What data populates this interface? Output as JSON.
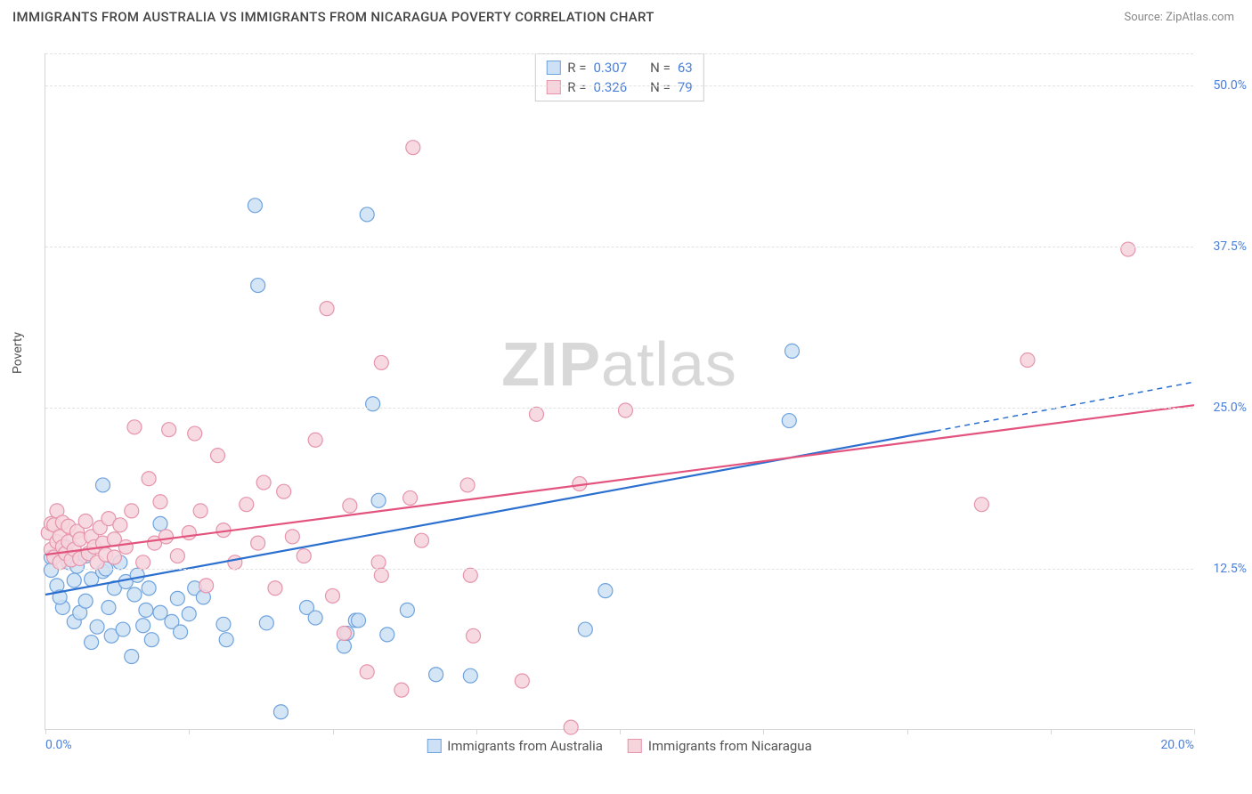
{
  "title": "IMMIGRANTS FROM AUSTRALIA VS IMMIGRANTS FROM NICARAGUA POVERTY CORRELATION CHART",
  "source": "Source: ZipAtlas.com",
  "ylabel": "Poverty",
  "watermark_bold": "ZIP",
  "watermark_light": "atlas",
  "chart": {
    "type": "scatter",
    "xlim": [
      0,
      20
    ],
    "ylim": [
      0,
      52.5
    ],
    "xtick_positions": [
      0,
      2.5,
      5,
      7.5,
      10,
      12.5,
      15,
      17.5,
      20
    ],
    "xtick_labels": {
      "0": "0.0%",
      "20": "20.0%"
    },
    "ytick_positions": [
      12.5,
      25,
      37.5,
      50
    ],
    "ytick_labels": [
      "12.5%",
      "25.0%",
      "37.5%",
      "50.0%"
    ],
    "grid_color": "#e2e2e2",
    "background_color": "#ffffff",
    "marker_radius": 8,
    "marker_stroke_width": 1.2,
    "trend_line_width": 2.2
  },
  "series": [
    {
      "name": "Immigrants from Australia",
      "fill": "#cde0f5",
      "stroke": "#6fa3dd",
      "line_color": "#2b6fcf",
      "R": "0.307",
      "N": "63",
      "trend": {
        "x1": 0,
        "y1": 10.5,
        "x2": 15.5,
        "y2": 23.2,
        "x2_ext": 20,
        "y2_ext": 27
      },
      "points": [
        [
          0.1,
          13.4
        ],
        [
          0.1,
          12.4
        ],
        [
          0.2,
          11.2
        ],
        [
          0.3,
          9.5
        ],
        [
          0.25,
          10.3
        ],
        [
          0.4,
          13.0
        ],
        [
          0.35,
          14.2
        ],
        [
          0.5,
          11.6
        ],
        [
          0.5,
          8.4
        ],
        [
          0.6,
          9.1
        ],
        [
          0.7,
          10.0
        ],
        [
          0.7,
          13.5
        ],
        [
          0.8,
          11.7
        ],
        [
          0.8,
          6.8
        ],
        [
          0.9,
          8.0
        ],
        [
          1.0,
          12.3
        ],
        [
          1.0,
          19.0
        ],
        [
          1.1,
          9.5
        ],
        [
          1.15,
          7.3
        ],
        [
          1.2,
          11.0
        ],
        [
          1.3,
          13.0
        ],
        [
          1.35,
          7.8
        ],
        [
          1.4,
          11.5
        ],
        [
          1.5,
          5.7
        ],
        [
          1.55,
          10.5
        ],
        [
          1.7,
          8.1
        ],
        [
          1.75,
          9.3
        ],
        [
          1.8,
          11.0
        ],
        [
          1.85,
          7.0
        ],
        [
          2.0,
          16.0
        ],
        [
          2.0,
          9.1
        ],
        [
          2.2,
          8.4
        ],
        [
          2.3,
          10.2
        ],
        [
          2.35,
          7.6
        ],
        [
          2.6,
          11.0
        ],
        [
          2.75,
          10.3
        ],
        [
          3.1,
          8.2
        ],
        [
          3.15,
          7.0
        ],
        [
          3.65,
          40.7
        ],
        [
          3.7,
          34.5
        ],
        [
          3.85,
          8.3
        ],
        [
          4.1,
          1.4
        ],
        [
          4.55,
          9.5
        ],
        [
          4.7,
          8.7
        ],
        [
          5.2,
          6.5
        ],
        [
          5.25,
          7.5
        ],
        [
          5.4,
          8.5
        ],
        [
          5.45,
          8.5
        ],
        [
          5.6,
          40.0
        ],
        [
          5.7,
          25.3
        ],
        [
          5.8,
          17.8
        ],
        [
          5.95,
          7.4
        ],
        [
          6.3,
          9.3
        ],
        [
          6.8,
          4.3
        ],
        [
          7.4,
          4.2
        ],
        [
          9.4,
          7.8
        ],
        [
          9.75,
          10.8
        ],
        [
          12.95,
          24.0
        ],
        [
          13.0,
          29.4
        ],
        [
          1.05,
          12.5
        ],
        [
          0.55,
          12.7
        ],
        [
          1.6,
          12.0
        ],
        [
          2.5,
          9.0
        ]
      ]
    },
    {
      "name": "Immigrants from Nicaragua",
      "fill": "#f6d4dc",
      "stroke": "#e594ab",
      "line_color": "#e2537e",
      "R": "0.326",
      "N": "79",
      "trend": {
        "x1": 0,
        "y1": 13.6,
        "x2": 20,
        "y2": 25.2
      },
      "points": [
        [
          0.05,
          15.3
        ],
        [
          0.1,
          14.0
        ],
        [
          0.1,
          16.0
        ],
        [
          0.15,
          13.4
        ],
        [
          0.15,
          15.9
        ],
        [
          0.2,
          14.6
        ],
        [
          0.2,
          17.0
        ],
        [
          0.25,
          13.0
        ],
        [
          0.25,
          15.0
        ],
        [
          0.3,
          14.2
        ],
        [
          0.3,
          16.1
        ],
        [
          0.35,
          13.7
        ],
        [
          0.4,
          14.6
        ],
        [
          0.4,
          15.8
        ],
        [
          0.45,
          13.2
        ],
        [
          0.5,
          14.0
        ],
        [
          0.55,
          15.4
        ],
        [
          0.6,
          13.3
        ],
        [
          0.6,
          14.8
        ],
        [
          0.7,
          16.2
        ],
        [
          0.75,
          13.7
        ],
        [
          0.8,
          15.0
        ],
        [
          0.85,
          14.2
        ],
        [
          0.9,
          13.0
        ],
        [
          0.95,
          15.7
        ],
        [
          1.0,
          14.5
        ],
        [
          1.05,
          13.6
        ],
        [
          1.1,
          16.4
        ],
        [
          1.2,
          14.8
        ],
        [
          1.2,
          13.4
        ],
        [
          1.3,
          15.9
        ],
        [
          1.4,
          14.2
        ],
        [
          1.5,
          17.0
        ],
        [
          1.55,
          23.5
        ],
        [
          1.7,
          13.0
        ],
        [
          1.8,
          19.5
        ],
        [
          1.9,
          14.5
        ],
        [
          2.0,
          17.7
        ],
        [
          2.1,
          15.0
        ],
        [
          2.15,
          23.3
        ],
        [
          2.3,
          13.5
        ],
        [
          2.5,
          15.3
        ],
        [
          2.6,
          23.0
        ],
        [
          2.7,
          17.0
        ],
        [
          2.8,
          11.2
        ],
        [
          3.0,
          21.3
        ],
        [
          3.1,
          15.5
        ],
        [
          3.3,
          13.0
        ],
        [
          3.5,
          17.5
        ],
        [
          3.7,
          14.5
        ],
        [
          3.8,
          19.2
        ],
        [
          4.0,
          11.0
        ],
        [
          4.15,
          18.5
        ],
        [
          4.3,
          15.0
        ],
        [
          4.7,
          22.5
        ],
        [
          4.9,
          32.7
        ],
        [
          5.0,
          10.4
        ],
        [
          5.2,
          7.5
        ],
        [
          5.3,
          17.4
        ],
        [
          5.6,
          4.5
        ],
        [
          5.8,
          13.0
        ],
        [
          5.85,
          28.5
        ],
        [
          5.85,
          12.0
        ],
        [
          6.2,
          3.1
        ],
        [
          6.35,
          18.0
        ],
        [
          6.4,
          45.2
        ],
        [
          6.55,
          14.7
        ],
        [
          7.35,
          19.0
        ],
        [
          7.4,
          12.0
        ],
        [
          7.45,
          7.3
        ],
        [
          8.3,
          3.8
        ],
        [
          8.55,
          24.5
        ],
        [
          9.15,
          0.2
        ],
        [
          9.3,
          19.1
        ],
        [
          10.1,
          24.8
        ],
        [
          16.3,
          17.5
        ],
        [
          17.1,
          28.7
        ],
        [
          18.85,
          37.3
        ],
        [
          4.5,
          13.5
        ]
      ]
    }
  ],
  "legend": {
    "r_label": "R =",
    "n_label": "N ="
  }
}
